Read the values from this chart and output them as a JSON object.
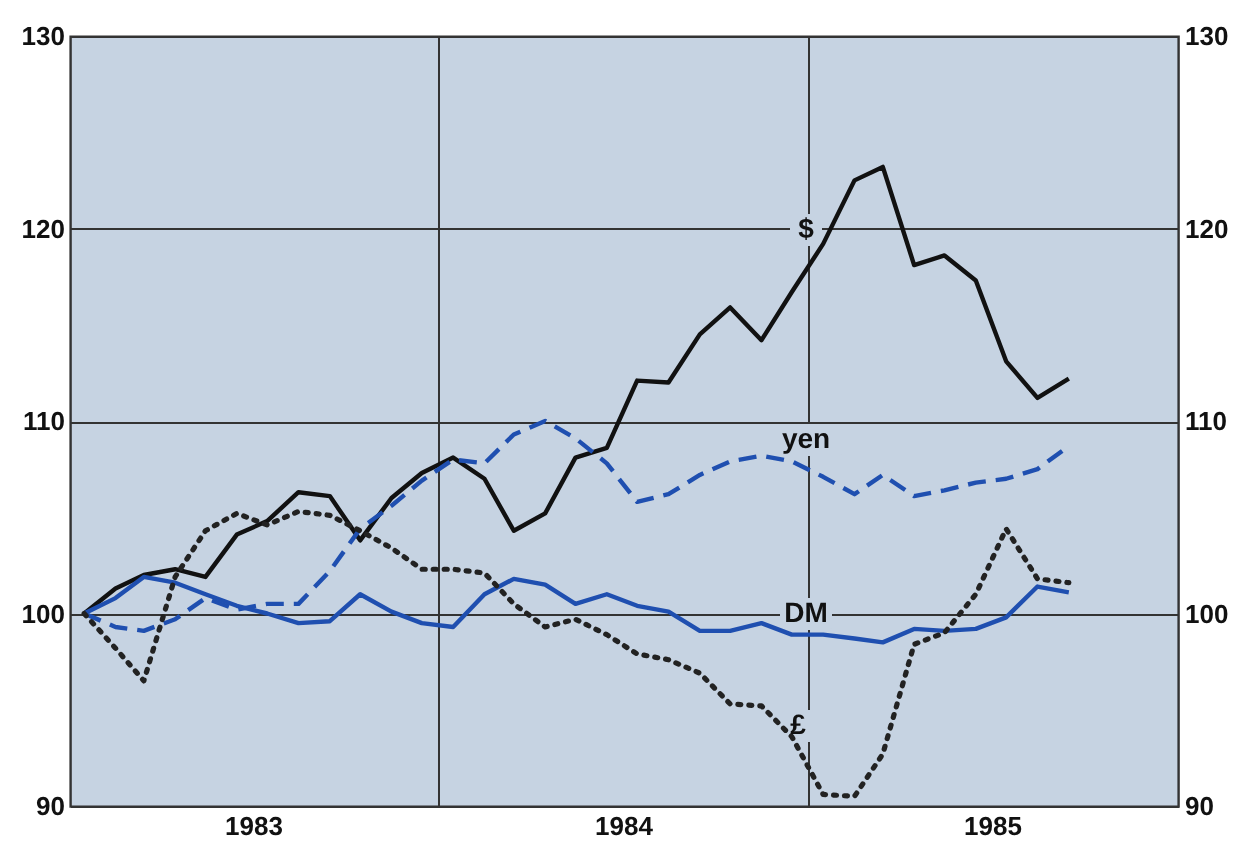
{
  "chart_data": {
    "type": "line",
    "x": [
      "1983-01-15",
      "1983-02-15",
      "1983-03-15",
      "1983-04-15",
      "1983-05-15",
      "1983-06-15",
      "1983-07-15",
      "1983-08-15",
      "1983-09-15",
      "1983-10-15",
      "1983-11-15",
      "1983-12-15",
      "1984-01-15",
      "1984-02-15",
      "1984-03-15",
      "1984-04-15",
      "1984-05-15",
      "1984-06-15",
      "1984-07-15",
      "1984-08-15",
      "1984-09-15",
      "1984-10-15",
      "1984-11-15",
      "1984-12-15",
      "1985-01-15",
      "1985-02-15",
      "1985-03-15",
      "1985-04-15",
      "1985-05-15",
      "1985-06-15",
      "1985-07-15",
      "1985-08-15",
      "1985-09-15"
    ],
    "series": [
      {
        "name": "$",
        "color": "#111111",
        "line_style": "solid",
        "values": [
          100,
          101.3,
          102,
          102.3,
          101.9,
          104.1,
          104.8,
          106.3,
          106.1,
          103.8,
          106,
          107.3,
          108.1,
          107,
          104.3,
          105.2,
          108.1,
          108.6,
          112.1,
          112,
          114.5,
          115.9,
          114.2,
          116.7,
          119.2,
          122.5,
          123.2,
          118.1,
          118.6,
          117.3,
          113.1,
          111.2,
          112.2
        ]
      },
      {
        "name": "yen",
        "color": "#1f4fb0",
        "line_style": "dashed",
        "values": [
          100,
          99.3,
          99.1,
          99.7,
          100.8,
          100.2,
          100.5,
          100.5,
          102.2,
          104.4,
          105.6,
          106.9,
          108,
          107.8,
          109.3,
          110,
          109.1,
          107.8,
          105.8,
          106.2,
          107.2,
          107.9,
          108.2,
          107.9,
          107.1,
          106.2,
          107.2,
          106.1,
          106.4,
          106.8,
          107,
          107.5,
          108.7
        ]
      },
      {
        "name": "DM",
        "color": "#1f4fb0",
        "line_style": "solid",
        "values": [
          100,
          100.8,
          101.9,
          101.6,
          101,
          100.4,
          100,
          99.5,
          99.6,
          101,
          100.1,
          99.5,
          99.3,
          101,
          101.8,
          101.5,
          100.5,
          101,
          100.4,
          100.1,
          99.1,
          99.1,
          99.5,
          98.9,
          98.9,
          98.7,
          98.5,
          99.2,
          99.1,
          99.2,
          99.8,
          101.4,
          101.1
        ]
      },
      {
        "name": "£",
        "color": "#222222",
        "line_style": "dotted",
        "values": [
          100,
          98.2,
          96.5,
          101.9,
          104.3,
          105.2,
          104.6,
          105.3,
          105.1,
          104.3,
          103.4,
          102.3,
          102.3,
          102.1,
          100.5,
          99.3,
          99.7,
          98.9,
          97.9,
          97.6,
          96.9,
          95.3,
          95.2,
          93.6,
          90.6,
          90.5,
          92.7,
          98.4,
          99,
          101,
          104.4,
          101.8,
          101.6
        ]
      }
    ],
    "xlim": [
      "1983-01",
      "1986-01"
    ],
    "xticks": [
      {
        "value": "1983-07",
        "label": "1983"
      },
      {
        "value": "1984-01",
        "label": null
      },
      {
        "value": "1984-07",
        "label": "1984"
      },
      {
        "value": "1985-01",
        "label": null
      },
      {
        "value": "1985-07",
        "label": "1985"
      }
    ],
    "ylim": [
      90,
      130
    ],
    "yticks": [
      90,
      100,
      110,
      120,
      130
    ],
    "y2lim": [
      90,
      130
    ],
    "y2ticks": [
      90,
      100,
      110,
      120,
      130
    ],
    "grid": true
  }
}
